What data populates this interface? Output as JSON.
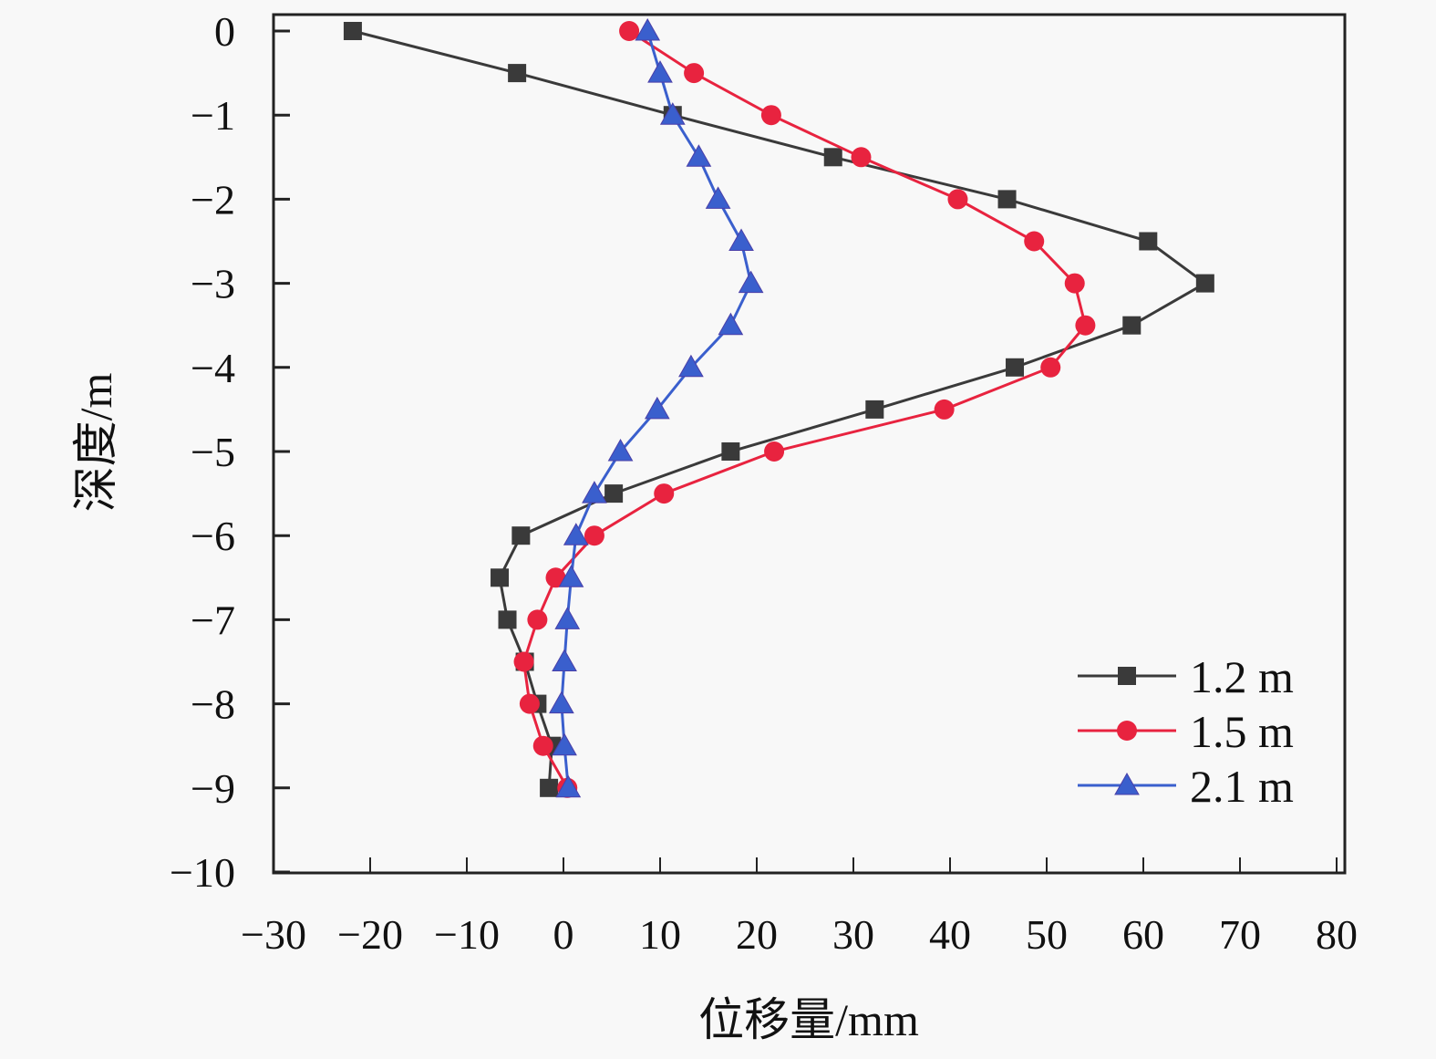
{
  "chart_data": {
    "type": "line",
    "title": "",
    "xlabel": "位移量/mm",
    "ylabel": "深度/m",
    "xlim": [
      -30,
      80
    ],
    "ylim": [
      -10,
      0
    ],
    "xticks": [
      -30,
      -20,
      -10,
      0,
      10,
      20,
      30,
      40,
      50,
      60,
      70,
      80
    ],
    "yticks": [
      0,
      -1,
      -2,
      -3,
      -4,
      -5,
      -6,
      -7,
      -8,
      -9,
      -10
    ],
    "xtick_labels": [
      "−30",
      "−20",
      "−10",
      "0",
      "10",
      "20",
      "30",
      "40",
      "50",
      "60",
      "70",
      "80"
    ],
    "ytick_labels": [
      "0",
      "−1",
      "−2",
      "−3",
      "−4",
      "−5",
      "−6",
      "−7",
      "−8",
      "−9",
      "−10"
    ],
    "grid": false,
    "legend_position": "bottom-right",
    "depths": [
      0,
      -0.5,
      -1,
      -1.5,
      -2,
      -2.5,
      -3,
      -3.5,
      -4,
      -4.5,
      -5,
      -5.5,
      -6,
      -6.5,
      -7,
      -7.5,
      -8,
      -8.5,
      -9
    ],
    "series": [
      {
        "name": "1.2 m",
        "marker": "square",
        "color": "#3a3a3a",
        "values": [
          -21.8,
          -4.8,
          11.3,
          27.9,
          45.9,
          60.5,
          66.4,
          58.8,
          46.7,
          32.2,
          17.3,
          5.2,
          -4.4,
          -6.6,
          -5.8,
          -4.0,
          -2.7,
          -1.2,
          -1.5
        ]
      },
      {
        "name": "1.5 m",
        "marker": "circle",
        "color": "#e8233f",
        "values": [
          6.8,
          13.5,
          21.5,
          30.8,
          40.8,
          48.7,
          52.9,
          54.0,
          50.4,
          39.4,
          21.8,
          10.4,
          3.2,
          -0.8,
          -2.7,
          -4.1,
          -3.5,
          -2.1,
          0.4
        ]
      },
      {
        "name": "2.1 m",
        "marker": "triangle",
        "color": "#3a5fcd",
        "values": [
          8.7,
          10.0,
          11.3,
          14.0,
          16.0,
          18.4,
          19.4,
          17.3,
          13.2,
          9.7,
          5.9,
          3.2,
          1.3,
          0.8,
          0.4,
          0.1,
          -0.2,
          0.1,
          0.5
        ]
      }
    ]
  }
}
